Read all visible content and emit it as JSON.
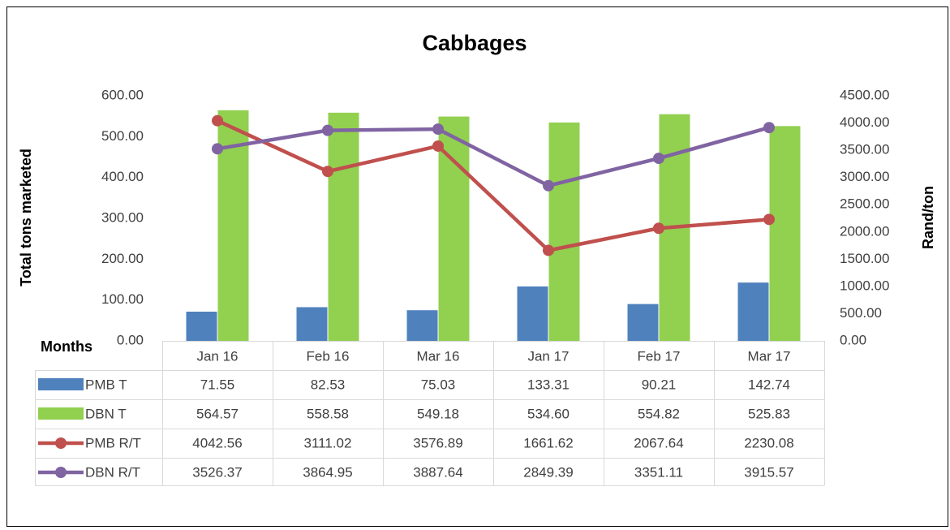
{
  "chart_data": {
    "type": "bar",
    "title": "Cabbages",
    "ylabel": "Total tons marketed",
    "y2label": "Rand/ton",
    "table_header": "Months",
    "categories": [
      "Jan 16",
      "Feb 16",
      "Mar 16",
      "Jan 17",
      "Feb 17",
      "Mar 17"
    ],
    "series": [
      {
        "name": "PMB T",
        "type": "bar",
        "color": "#4f81bd",
        "values": [
          71.55,
          82.53,
          75.03,
          133.31,
          90.21,
          142.74
        ],
        "value_labels": [
          "71.55",
          "82.53",
          "75.03",
          "133.31",
          "90.21",
          "142.74"
        ]
      },
      {
        "name": "DBN T",
        "type": "bar",
        "color": "#92d050",
        "values": [
          564.57,
          558.58,
          549.18,
          534.6,
          554.82,
          525.83
        ],
        "value_labels": [
          "564.57",
          "558.58",
          "549.18",
          "534.60",
          "554.82",
          "525.83"
        ]
      },
      {
        "name": "PMB R/T",
        "type": "line",
        "axis": "y2",
        "color": "#c0504d",
        "values": [
          4042.56,
          3111.02,
          3576.89,
          1661.62,
          2067.64,
          2230.08
        ],
        "value_labels": [
          "4042.56",
          "3111.02",
          "3576.89",
          "1661.62",
          "2067.64",
          "2230.08"
        ]
      },
      {
        "name": "DBN R/T",
        "type": "line",
        "axis": "y2",
        "color": "#8064a2",
        "values": [
          3526.37,
          3864.95,
          3887.64,
          2849.39,
          3351.11,
          3915.57
        ],
        "value_labels": [
          "3526.37",
          "3864.95",
          "3887.64",
          "2849.39",
          "3351.11",
          "3915.57"
        ]
      }
    ],
    "ylim": [
      0,
      600
    ],
    "yticks": [
      {
        "value": 0,
        "label": "0.00"
      },
      {
        "value": 100,
        "label": "100.00"
      },
      {
        "value": 200,
        "label": "200.00"
      },
      {
        "value": 300,
        "label": "300.00"
      },
      {
        "value": 400,
        "label": "400.00"
      },
      {
        "value": 500,
        "label": "500.00"
      },
      {
        "value": 600,
        "label": "600.00"
      }
    ],
    "y2lim": [
      0,
      4500
    ],
    "y2ticks": [
      {
        "value": 0,
        "label": "0.00"
      },
      {
        "value": 500,
        "label": "500.00"
      },
      {
        "value": 1000,
        "label": "1000.00"
      },
      {
        "value": 1500,
        "label": "1500.00"
      },
      {
        "value": 2000,
        "label": "2000.00"
      },
      {
        "value": 2500,
        "label": "2500.00"
      },
      {
        "value": 3000,
        "label": "3000.00"
      },
      {
        "value": 3500,
        "label": "3500.00"
      },
      {
        "value": 4000,
        "label": "4000.00"
      },
      {
        "value": 4500,
        "label": "4500.00"
      }
    ],
    "grid": false
  }
}
